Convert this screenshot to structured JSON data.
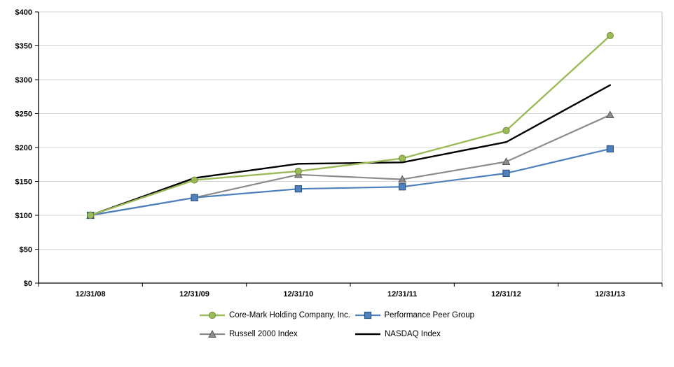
{
  "chart_data": {
    "type": "line",
    "title": "",
    "xlabel": "",
    "ylabel": "",
    "categories": [
      "12/31/08",
      "12/31/09",
      "12/31/10",
      "12/31/11",
      "12/31/12",
      "12/31/13"
    ],
    "series": [
      {
        "name": "Core-Mark Holding Company, Inc.",
        "values": [
          100,
          152,
          165,
          184,
          225,
          365
        ],
        "color": "#9BBB59",
        "marker": "circle",
        "marker_border": "#71893F",
        "line_width": 2.4
      },
      {
        "name": "Performance Peer Group",
        "values": [
          100,
          126,
          139,
          142,
          162,
          198
        ],
        "color": "#4F81BD",
        "marker": "square",
        "marker_border": "#1F4E79",
        "line_width": 2.2
      },
      {
        "name": "Russell 2000 Index",
        "values": [
          100,
          126,
          160,
          153,
          179,
          248
        ],
        "color": "#8C8C8C",
        "marker": "triangle",
        "marker_border": "#595959",
        "line_width": 2.2
      },
      {
        "name": "NASDAQ Index",
        "values": [
          100,
          155,
          176,
          178,
          208,
          292
        ],
        "color": "#000000",
        "marker": "none",
        "marker_border": "#000000",
        "line_width": 2.4
      }
    ],
    "ylim": [
      0,
      400
    ],
    "ytick_step": 50,
    "y_prefix": "$",
    "grid": true,
    "legend_position": "bottom",
    "legend_rows": [
      [
        0,
        1
      ],
      [
        2,
        3
      ]
    ],
    "colors": {
      "gridline": "#D4D4D4",
      "axis": "#000000",
      "right_border": "#BFBFBF",
      "background": "#FFFFFF"
    }
  }
}
